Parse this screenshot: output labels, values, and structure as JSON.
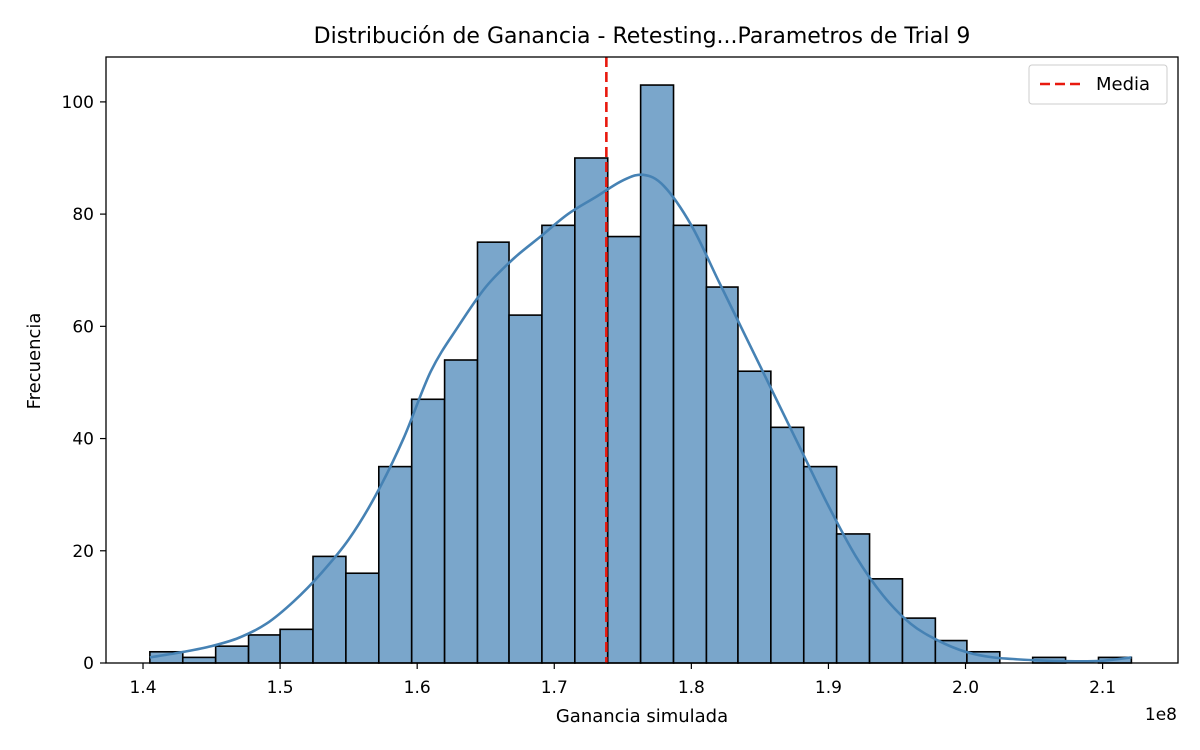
{
  "chart_data": {
    "type": "bar",
    "title": "Distribución de Ganancia - Retesting...Parametros de Trial 9",
    "xlabel": "Ganancia simulada",
    "ylabel": "Frecuencia",
    "x_offset_label": "1e8",
    "xlim": [
      1.373,
      2.155
    ],
    "ylim": [
      0,
      108
    ],
    "x_ticks": [
      1.4,
      1.5,
      1.6,
      1.7,
      1.8,
      1.9,
      2.0,
      2.1
    ],
    "x_tick_labels": [
      "1.4",
      "1.5",
      "1.6",
      "1.7",
      "1.8",
      "1.9",
      "2.0",
      "2.1"
    ],
    "y_ticks": [
      0,
      20,
      40,
      60,
      80,
      100
    ],
    "y_tick_labels": [
      "0",
      "20",
      "40",
      "60",
      "80",
      "100"
    ],
    "bin_edges": [
      1.405,
      1.429,
      1.453,
      1.477,
      1.5,
      1.524,
      1.548,
      1.572,
      1.596,
      1.62,
      1.644,
      1.667,
      1.691,
      1.715,
      1.739,
      1.763,
      1.787,
      1.811,
      1.834,
      1.858,
      1.882,
      1.906,
      1.93,
      1.954,
      1.978,
      2.001,
      2.025,
      2.049,
      2.073,
      2.097,
      2.121
    ],
    "counts": [
      2,
      1,
      3,
      5,
      6,
      19,
      16,
      35,
      47,
      54,
      75,
      62,
      78,
      90,
      76,
      103,
      78,
      67,
      52,
      42,
      35,
      23,
      15,
      8,
      4,
      2,
      0,
      1,
      0,
      1
    ],
    "kde": {
      "x": [
        1.405,
        1.43,
        1.45,
        1.47,
        1.49,
        1.51,
        1.53,
        1.55,
        1.57,
        1.59,
        1.61,
        1.63,
        1.65,
        1.67,
        1.69,
        1.71,
        1.73,
        1.75,
        1.765,
        1.78,
        1.8,
        1.82,
        1.84,
        1.86,
        1.88,
        1.9,
        1.92,
        1.94,
        1.96,
        1.98,
        2.0,
        2.02,
        2.05,
        2.08,
        2.1,
        2.121
      ],
      "y": [
        1,
        2,
        3,
        4.5,
        7,
        11,
        16,
        22,
        30,
        40,
        52,
        60,
        67,
        72,
        76,
        80,
        83,
        86,
        87,
        85,
        78,
        68,
        58,
        48,
        38,
        28,
        19,
        12,
        7,
        4,
        2,
        1,
        0.5,
        0.3,
        0.4,
        1
      ]
    },
    "mean": 1.738,
    "legend": {
      "entries": [
        "Media"
      ],
      "position": "top-right"
    },
    "colors": {
      "bar_fill": "#7aa6cb",
      "bar_edge": "#000000",
      "kde_line": "#4682b4",
      "mean_line": "#e8190e"
    },
    "grid": false
  }
}
